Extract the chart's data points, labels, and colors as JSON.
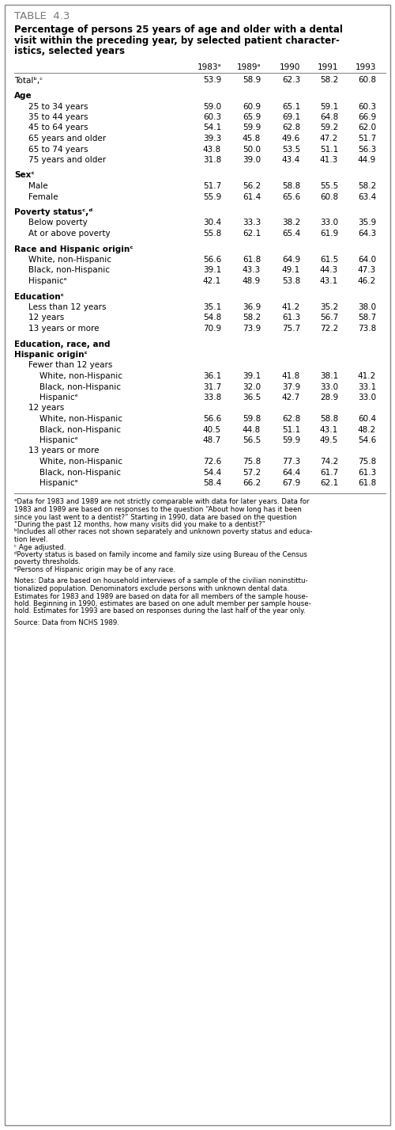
{
  "table_label": "TABLE  4.3",
  "title_lines": [
    "Percentage of persons 25 years of age and older with a dental",
    "visit within the preceding year, by selected patient character-",
    "istics, selected years"
  ],
  "col_headers": [
    "1983ᵃ",
    "1989ᵃ",
    "1990",
    "1991",
    "1993"
  ],
  "rows": [
    {
      "label": "Totalᵇ,ᶜ",
      "indent": 0,
      "bold": false,
      "values": [
        "53.9",
        "58.9",
        "62.3",
        "58.2",
        "60.8"
      ],
      "spacer_before": false,
      "multiline": false
    },
    {
      "label": "Age",
      "indent": 0,
      "bold": true,
      "values": [
        "",
        "",
        "",
        "",
        ""
      ],
      "spacer_before": true,
      "multiline": false
    },
    {
      "label": "25 to 34 years",
      "indent": 1,
      "bold": false,
      "values": [
        "59.0",
        "60.9",
        "65.1",
        "59.1",
        "60.3"
      ],
      "spacer_before": false,
      "multiline": false
    },
    {
      "label": "35 to 44 years",
      "indent": 1,
      "bold": false,
      "values": [
        "60.3",
        "65.9",
        "69.1",
        "64.8",
        "66.9"
      ],
      "spacer_before": false,
      "multiline": false
    },
    {
      "label": "45 to 64 years",
      "indent": 1,
      "bold": false,
      "values": [
        "54.1",
        "59.9",
        "62.8",
        "59.2",
        "62.0"
      ],
      "spacer_before": false,
      "multiline": false
    },
    {
      "label": "65 years and older",
      "indent": 1,
      "bold": false,
      "values": [
        "39.3",
        "45.8",
        "49.6",
        "47.2",
        "51.7"
      ],
      "spacer_before": false,
      "multiline": false
    },
    {
      "label": "65 to 74 years",
      "indent": 1,
      "bold": false,
      "values": [
        "43.8",
        "50.0",
        "53.5",
        "51.1",
        "56.3"
      ],
      "spacer_before": false,
      "multiline": false
    },
    {
      "label": "75 years and older",
      "indent": 1,
      "bold": false,
      "values": [
        "31.8",
        "39.0",
        "43.4",
        "41.3",
        "44.9"
      ],
      "spacer_before": false,
      "multiline": false
    },
    {
      "label": "Sexᶜ",
      "indent": 0,
      "bold": true,
      "values": [
        "",
        "",
        "",
        "",
        ""
      ],
      "spacer_before": true,
      "multiline": false
    },
    {
      "label": "Male",
      "indent": 1,
      "bold": false,
      "values": [
        "51.7",
        "56.2",
        "58.8",
        "55.5",
        "58.2"
      ],
      "spacer_before": false,
      "multiline": false
    },
    {
      "label": "Female",
      "indent": 1,
      "bold": false,
      "values": [
        "55.9",
        "61.4",
        "65.6",
        "60.8",
        "63.4"
      ],
      "spacer_before": false,
      "multiline": false
    },
    {
      "label": "Poverty statusᶜ,ᵈ",
      "indent": 0,
      "bold": true,
      "values": [
        "",
        "",
        "",
        "",
        ""
      ],
      "spacer_before": true,
      "multiline": false
    },
    {
      "label": "Below poverty",
      "indent": 1,
      "bold": false,
      "values": [
        "30.4",
        "33.3",
        "38.2",
        "33.0",
        "35.9"
      ],
      "spacer_before": false,
      "multiline": false
    },
    {
      "label": "At or above poverty",
      "indent": 1,
      "bold": false,
      "values": [
        "55.8",
        "62.1",
        "65.4",
        "61.9",
        "64.3"
      ],
      "spacer_before": false,
      "multiline": false
    },
    {
      "label": "Race and Hispanic originᶜ",
      "indent": 0,
      "bold": true,
      "values": [
        "",
        "",
        "",
        "",
        ""
      ],
      "spacer_before": true,
      "multiline": false
    },
    {
      "label": "White, non-Hispanic",
      "indent": 1,
      "bold": false,
      "values": [
        "56.6",
        "61.8",
        "64.9",
        "61.5",
        "64.0"
      ],
      "spacer_before": false,
      "multiline": false
    },
    {
      "label": "Black, non-Hispanic",
      "indent": 1,
      "bold": false,
      "values": [
        "39.1",
        "43.3",
        "49.1",
        "44.3",
        "47.3"
      ],
      "spacer_before": false,
      "multiline": false
    },
    {
      "label": "Hispanicᵉ",
      "indent": 1,
      "bold": false,
      "values": [
        "42.1",
        "48.9",
        "53.8",
        "43.1",
        "46.2"
      ],
      "spacer_before": false,
      "multiline": false
    },
    {
      "label": "Educationᶜ",
      "indent": 0,
      "bold": true,
      "values": [
        "",
        "",
        "",
        "",
        ""
      ],
      "spacer_before": true,
      "multiline": false
    },
    {
      "label": "Less than 12 years",
      "indent": 1,
      "bold": false,
      "values": [
        "35.1",
        "36.9",
        "41.2",
        "35.2",
        "38.0"
      ],
      "spacer_before": false,
      "multiline": false
    },
    {
      "label": "12 years",
      "indent": 1,
      "bold": false,
      "values": [
        "54.8",
        "58.2",
        "61.3",
        "56.7",
        "58.7"
      ],
      "spacer_before": false,
      "multiline": false
    },
    {
      "label": "13 years or more",
      "indent": 1,
      "bold": false,
      "values": [
        "70.9",
        "73.9",
        "75.7",
        "72.2",
        "73.8"
      ],
      "spacer_before": false,
      "multiline": false
    },
    {
      "label": "Education, race, and",
      "indent": 0,
      "bold": true,
      "values": [
        "",
        "",
        "",
        "",
        ""
      ],
      "spacer_before": true,
      "multiline": false
    },
    {
      "label": "Hispanic originᶜ",
      "indent": 0,
      "bold": true,
      "values": [
        "",
        "",
        "",
        "",
        ""
      ],
      "spacer_before": false,
      "multiline": false
    },
    {
      "label": "Fewer than 12 years",
      "indent": 1,
      "bold": false,
      "values": [
        "",
        "",
        "",
        "",
        ""
      ],
      "spacer_before": false,
      "multiline": false
    },
    {
      "label": "White, non-Hispanic",
      "indent": 2,
      "bold": false,
      "values": [
        "36.1",
        "39.1",
        "41.8",
        "38.1",
        "41.2"
      ],
      "spacer_before": false,
      "multiline": false
    },
    {
      "label": "Black, non-Hispanic",
      "indent": 2,
      "bold": false,
      "values": [
        "31.7",
        "32.0",
        "37.9",
        "33.0",
        "33.1"
      ],
      "spacer_before": false,
      "multiline": false
    },
    {
      "label": "Hispanicᵉ",
      "indent": 2,
      "bold": false,
      "values": [
        "33.8",
        "36.5",
        "42.7",
        "28.9",
        "33.0"
      ],
      "spacer_before": false,
      "multiline": false
    },
    {
      "label": "12 years",
      "indent": 1,
      "bold": false,
      "values": [
        "",
        "",
        "",
        "",
        ""
      ],
      "spacer_before": false,
      "multiline": false
    },
    {
      "label": "White, non-Hispanic",
      "indent": 2,
      "bold": false,
      "values": [
        "56.6",
        "59.8",
        "62.8",
        "58.8",
        "60.4"
      ],
      "spacer_before": false,
      "multiline": false
    },
    {
      "label": "Black, non-Hispanic",
      "indent": 2,
      "bold": false,
      "values": [
        "40.5",
        "44.8",
        "51.1",
        "43.1",
        "48.2"
      ],
      "spacer_before": false,
      "multiline": false
    },
    {
      "label": "Hispanicᵉ",
      "indent": 2,
      "bold": false,
      "values": [
        "48.7",
        "56.5",
        "59.9",
        "49.5",
        "54.6"
      ],
      "spacer_before": false,
      "multiline": false
    },
    {
      "label": "13 years or more",
      "indent": 1,
      "bold": false,
      "values": [
        "",
        "",
        "",
        "",
        ""
      ],
      "spacer_before": false,
      "multiline": false
    },
    {
      "label": "White, non-Hispanic",
      "indent": 2,
      "bold": false,
      "values": [
        "72.6",
        "75.8",
        "77.3",
        "74.2",
        "75.8"
      ],
      "spacer_before": false,
      "multiline": false
    },
    {
      "label": "Black, non-Hispanic",
      "indent": 2,
      "bold": false,
      "values": [
        "54.4",
        "57.2",
        "64.4",
        "61.7",
        "61.3"
      ],
      "spacer_before": false,
      "multiline": false
    },
    {
      "label": "Hispanicᵉ",
      "indent": 2,
      "bold": false,
      "values": [
        "58.4",
        "66.2",
        "67.9",
        "62.1",
        "61.8"
      ],
      "spacer_before": false,
      "multiline": false
    }
  ],
  "footnote_blocks": [
    {
      "lines": [
        "ᵃData for 1983 and 1989 are not strictly comparable with data for later years. Data for",
        "1983 and 1989 are based on responses to the question “About how long has it been",
        "since you last went to a dentist?” Starting in 1990, data are based on the question",
        "“During the past 12 months, how many visits did you make to a dentist?”"
      ]
    },
    {
      "lines": [
        "ᵇIncludes all other races not shown separately and unknown poverty status and educa-",
        "tion level."
      ]
    },
    {
      "lines": [
        "ᶜ Age adjusted."
      ]
    },
    {
      "lines": [
        "ᵈPoverty status is based on family income and family size using Bureau of the Census",
        "poverty thresholds."
      ]
    },
    {
      "lines": [
        "ᵉPersons of Hispanic origin may be of any race."
      ]
    },
    {
      "lines": [
        "Notes: Data are based on household interviews of a sample of the civilian noninstittu-",
        "tionalized population. Denominators exclude persons with unknown dental data.",
        "Estimates for 1983 and 1989 are based on data for all members of the sample house-",
        "hold. Beginning in 1990, estimates are based on one adult member per sample house-",
        "hold. Estimates for 1993 are based on responses during the last half of the year only."
      ],
      "spacer_before": true
    },
    {
      "lines": [
        "Source: Data from NCHS 1989."
      ],
      "spacer_before": true
    }
  ],
  "bg_color": "#ffffff",
  "text_color": "#000000",
  "border_color": "#888888",
  "line_color": "#888888"
}
